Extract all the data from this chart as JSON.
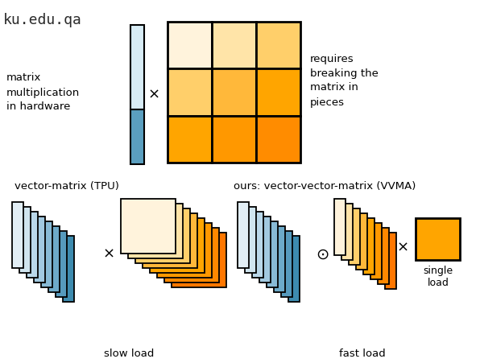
{
  "bg_color": "#ffffff",
  "watermark": "ku.edu.qa",
  "text_matrix_label": "matrix\nmultiplication\nin hardware",
  "text_requires": "requires\nbreaking the\nmatrix in\npieces",
  "text_tpu": "vector-matrix (TPU)",
  "text_vvma": "ours: vector-vector-matrix (VVMA)",
  "text_slow": "slow load",
  "text_fast": "fast load",
  "text_single": "single\nload",
  "grid_colors": [
    [
      "#FFF3DC",
      "#FFE4A8",
      "#FFCF6A"
    ],
    [
      "#FFCF6A",
      "#FFB83A",
      "#FFA500"
    ],
    [
      "#FFA500",
      "#FF9800",
      "#FF8C00"
    ]
  ],
  "blue_fan_colors": [
    "#E2EEF5",
    "#D0E5EF",
    "#BAD8EA",
    "#A2C9E0",
    "#88BAD5",
    "#6DAAC9",
    "#569ABD",
    "#3D8BAF"
  ],
  "orange_fan_sq_colors": [
    "#FFF3DC",
    "#FFE4A8",
    "#FFCF6A",
    "#FFB83A",
    "#FFA500",
    "#FF9800",
    "#FF8800",
    "#FF7700"
  ],
  "orange_fan_vec_colors": [
    "#FFF3DC",
    "#FFE4A8",
    "#FFCF6A",
    "#FFB83A",
    "#FFA500",
    "#FF9800",
    "#FF8800",
    "#FF7700"
  ],
  "vec_top_light": "#D8ECF5",
  "vec_top_blue": "#5B9FC0",
  "orange_single": "#FFA500"
}
